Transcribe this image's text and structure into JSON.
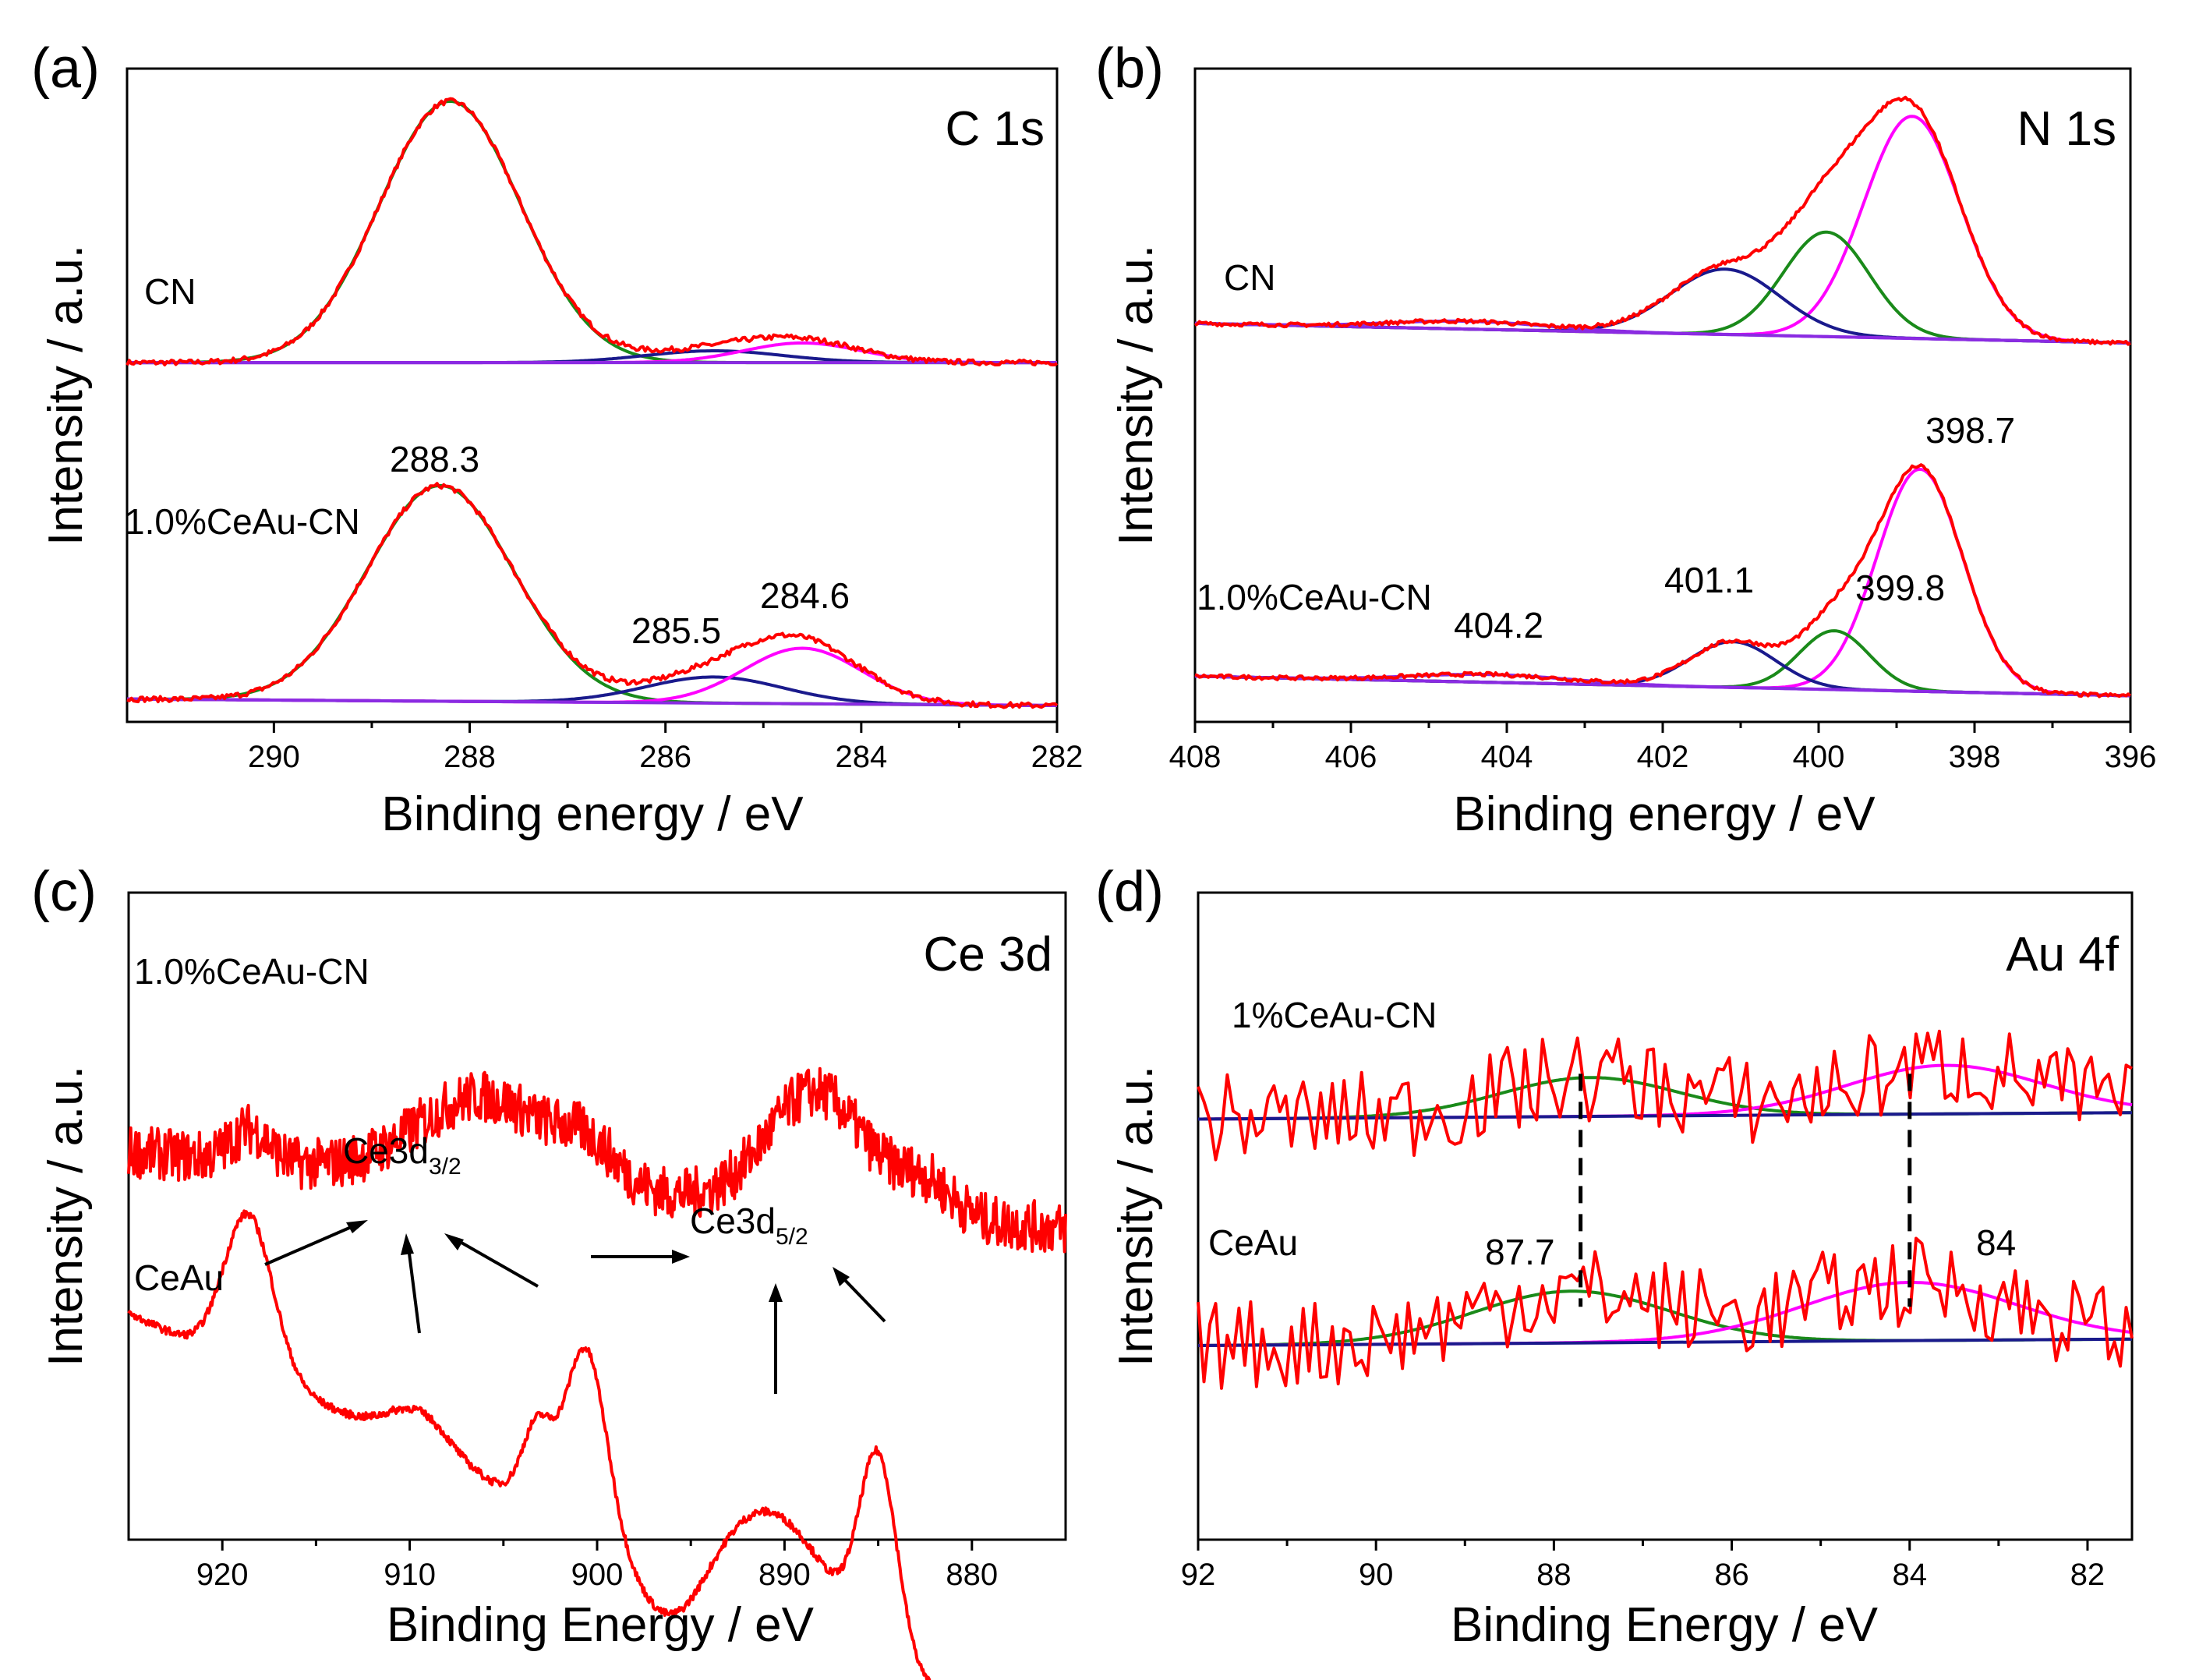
{
  "colors": {
    "envelope": "#ff0000",
    "fit_green": "#1a8a1a",
    "fit_blue": "#1a1a8c",
    "fit_magenta": "#ff00ff",
    "baseline_purple": "#8a2be2",
    "baseline_blue": "#1a1a8c"
  },
  "chart_data": [
    {
      "panel": "(a)",
      "core": "C 1s",
      "type": "line",
      "xlabel": "Binding energy / eV",
      "ylabel": "Intensity / a.u.",
      "xlim": [
        291.5,
        282
      ],
      "ylim": [
        0,
        1
      ],
      "xticks": [
        290,
        288,
        286,
        284,
        282
      ],
      "peak_labels": [
        "288.3",
        "285.5",
        "284.6"
      ],
      "samples": [
        {
          "name": "CN",
          "offset": 0.55,
          "noise": 0.004,
          "baseline": [
            0.0,
            0.0
          ],
          "peaks": [
            {
              "center": 288.2,
              "height": 0.4,
              "sigma": 0.72,
              "color": "fit_green"
            },
            {
              "center": 285.5,
              "height": 0.018,
              "sigma": 0.7,
              "color": "fit_blue"
            },
            {
              "center": 284.6,
              "height": 0.03,
              "sigma": 0.6,
              "color": "fit_magenta"
            }
          ]
        },
        {
          "name": "1.0%CeAu-CN",
          "offset": 0.03,
          "noise": 0.004,
          "baseline": [
            0.005,
            -0.005
          ],
          "peaks": [
            {
              "center": 288.3,
              "height": 0.33,
              "sigma": 0.75,
              "color": "fit_green"
            },
            {
              "center": 285.5,
              "height": 0.04,
              "sigma": 0.7,
              "color": "fit_blue"
            },
            {
              "center": 284.6,
              "height": 0.085,
              "sigma": 0.6,
              "color": "fit_magenta"
            }
          ]
        }
      ]
    },
    {
      "panel": "(b)",
      "core": "N 1s",
      "type": "line",
      "xlabel": "Binding energy / eV",
      "ylabel": "Intensity / a.u.",
      "xlim": [
        408,
        396
      ],
      "ylim": [
        0,
        1
      ],
      "xticks": [
        408,
        406,
        404,
        402,
        400,
        398,
        396
      ],
      "peak_labels": [
        "398.7",
        "401.1",
        "399.8",
        "404.2"
      ],
      "samples": [
        {
          "name": "CN",
          "offset": 0.61,
          "noise": 0.003,
          "baseline": [
            0.0,
            -0.03
          ],
          "peaks": [
            {
              "center": 398.8,
              "height": 0.34,
              "sigma": 0.62,
              "color": "fit_magenta"
            },
            {
              "center": 399.9,
              "height": 0.16,
              "sigma": 0.55,
              "color": "fit_green"
            },
            {
              "center": 401.2,
              "height": 0.1,
              "sigma": 0.7,
              "color": "fit_blue"
            },
            {
              "center": 404.5,
              "height": 0.012,
              "sigma": 1.0,
              "color": "baseline_purple"
            }
          ]
        },
        {
          "name": "1.0%CeAu-CN",
          "offset": 0.07,
          "noise": 0.003,
          "baseline": [
            0.0,
            -0.03
          ],
          "peaks": [
            {
              "center": 398.7,
              "height": 0.34,
              "sigma": 0.55,
              "color": "fit_magenta"
            },
            {
              "center": 399.8,
              "height": 0.09,
              "sigma": 0.45,
              "color": "fit_green"
            },
            {
              "center": 401.1,
              "height": 0.07,
              "sigma": 0.55,
              "color": "fit_blue"
            },
            {
              "center": 404.2,
              "height": 0.012,
              "sigma": 1.0,
              "color": "baseline_purple"
            }
          ]
        }
      ]
    },
    {
      "panel": "(c)",
      "core": "Ce 3d",
      "type": "line",
      "xlabel": "Binding Energy / eV",
      "ylabel": "Intensity / a.u.",
      "xlim": [
        925,
        875
      ],
      "ylim": [
        0,
        1
      ],
      "xticks": [
        920,
        910,
        900,
        890,
        880
      ],
      "annotations": [
        "Ce3d",
        "3/2",
        "Ce3d",
        "5/2"
      ],
      "samples": [
        {
          "name": "1.0%CeAu-CN",
          "offset": 0.6,
          "noise": 0.04,
          "baseline": [
            0.0,
            -0.12
          ],
          "peaks": [
            {
              "center": 918.5,
              "height": 0.05,
              "sigma": 1.0,
              "color": "envelope"
            },
            {
              "center": 906,
              "height": 0.13,
              "sigma": 3.5,
              "color": "envelope"
            },
            {
              "center": 900.5,
              "height": 0.05,
              "sigma": 1.5,
              "color": "envelope"
            },
            {
              "center": 888.3,
              "height": 0.18,
              "sigma": 2.6,
              "color": "envelope"
            },
            {
              "center": 882.5,
              "height": 0.05,
              "sigma": 1.5,
              "color": "envelope"
            }
          ]
        },
        {
          "name": "CeAu",
          "offset": 0.01,
          "noise": 0.006,
          "baseline": [
            0.34,
            -0.34
          ],
          "peaks": [
            {
              "center": 918.6,
              "height": 0.24,
              "sigma": 1.3,
              "color": "envelope"
            },
            {
              "center": 909.5,
              "height": 0.06,
              "sigma": 1.6,
              "color": "envelope"
            },
            {
              "center": 903.2,
              "height": 0.12,
              "sigma": 0.8,
              "color": "envelope"
            },
            {
              "center": 900.6,
              "height": 0.28,
              "sigma": 1.1,
              "color": "envelope"
            },
            {
              "center": 890.5,
              "height": 0.16,
              "sigma": 3.0,
              "color": "envelope"
            },
            {
              "center": 885.0,
              "height": 0.3,
              "sigma": 1.0,
              "color": "envelope"
            },
            {
              "center": 896.0,
              "height": -0.1,
              "sigma": 1.8,
              "color": "envelope"
            }
          ]
        }
      ]
    },
    {
      "panel": "(d)",
      "core": "Au 4f",
      "type": "line",
      "xlabel": "Binding Energy / eV",
      "ylabel": "Intensity / a.u.",
      "xlim": [
        92,
        81.5
      ],
      "ylim": [
        0,
        1
      ],
      "xticks": [
        92,
        90,
        88,
        86,
        84,
        82
      ],
      "peak_labels": [
        "87.7",
        "84"
      ],
      "dashed_lines_x": [
        87.7,
        84
      ],
      "samples": [
        {
          "name": "1%CeAu-CN",
          "offset": 0.65,
          "noise": 0.07,
          "baseline": [
            0.0,
            0.01
          ],
          "peaks": [
            {
              "center": 87.6,
              "height": 0.06,
              "sigma": 1.0,
              "color": "fit_green"
            },
            {
              "center": 83.6,
              "height": 0.075,
              "sigma": 1.1,
              "color": "fit_magenta"
            }
          ]
        },
        {
          "name": "CeAu",
          "offset": 0.3,
          "noise": 0.07,
          "baseline": [
            0.0,
            0.01
          ],
          "peaks": [
            {
              "center": 87.8,
              "height": 0.08,
              "sigma": 1.1,
              "color": "fit_green"
            },
            {
              "center": 84.0,
              "height": 0.09,
              "sigma": 1.2,
              "color": "fit_magenta"
            }
          ]
        }
      ]
    }
  ]
}
